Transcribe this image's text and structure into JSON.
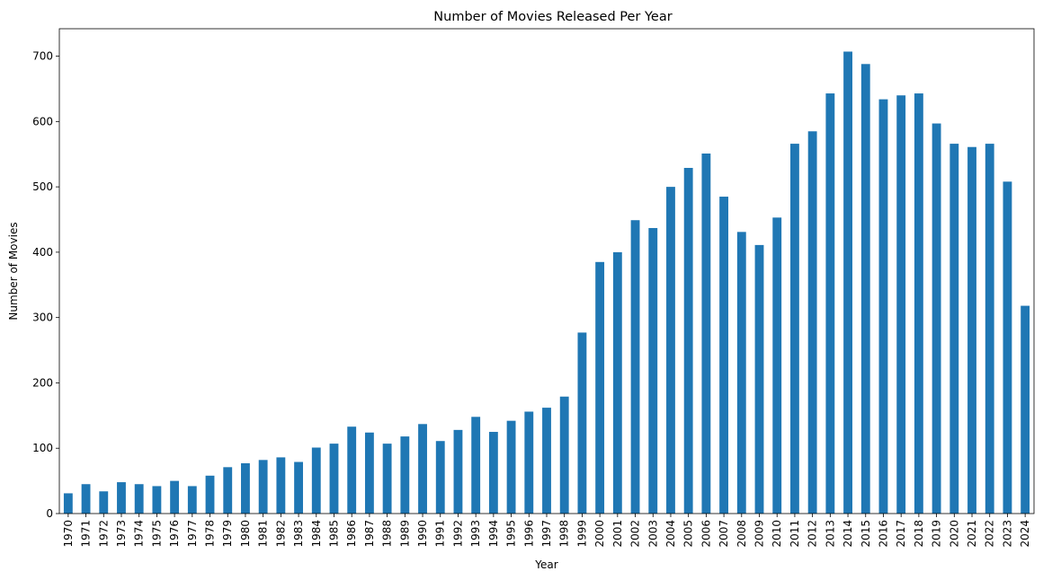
{
  "chart_data": {
    "type": "bar",
    "title": "Number of Movies Released Per Year",
    "xlabel": "Year",
    "ylabel": "Number of Movies",
    "ylim": [
      0,
      742
    ],
    "yticks": [
      0,
      100,
      200,
      300,
      400,
      500,
      600,
      700
    ],
    "grid": false,
    "legend": "none",
    "bar_color": "#1f77b4",
    "categories": [
      "1970",
      "1971",
      "1972",
      "1973",
      "1974",
      "1975",
      "1976",
      "1977",
      "1978",
      "1979",
      "1980",
      "1981",
      "1982",
      "1983",
      "1984",
      "1985",
      "1986",
      "1987",
      "1988",
      "1989",
      "1990",
      "1991",
      "1992",
      "1993",
      "1994",
      "1995",
      "1996",
      "1997",
      "1998",
      "1999",
      "2000",
      "2001",
      "2002",
      "2003",
      "2004",
      "2005",
      "2006",
      "2007",
      "2008",
      "2009",
      "2010",
      "2011",
      "2012",
      "2013",
      "2014",
      "2015",
      "2016",
      "2017",
      "2018",
      "2019",
      "2020",
      "2021",
      "2022",
      "2023",
      "2024"
    ],
    "values": [
      31,
      45,
      34,
      48,
      45,
      42,
      50,
      42,
      58,
      71,
      77,
      82,
      86,
      79,
      101,
      107,
      133,
      124,
      107,
      118,
      137,
      111,
      128,
      148,
      125,
      142,
      156,
      162,
      179,
      277,
      385,
      400,
      449,
      437,
      500,
      529,
      551,
      485,
      431,
      411,
      453,
      566,
      585,
      643,
      707,
      688,
      634,
      640,
      643,
      597,
      566,
      561,
      566,
      508,
      318
    ]
  }
}
